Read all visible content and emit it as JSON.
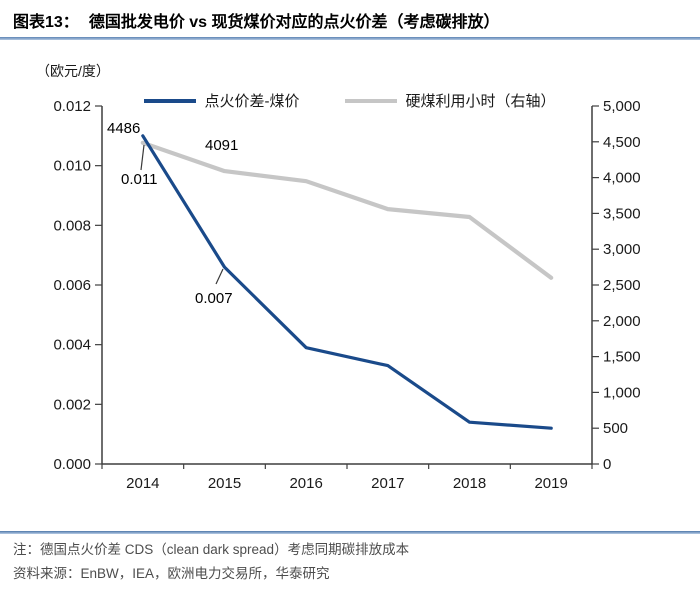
{
  "header": {
    "figure_label": "图表13：",
    "title": "德国批发电价 vs 现货煤价对应的点火价差（考虑碳排放）"
  },
  "footer": {
    "note": "注：德国点火价差 CDS（clean dark spread）考虑同期碳排放成本",
    "source": "资料来源：EnBW，IEA，欧洲电力交易所，华泰研究"
  },
  "colors": {
    "spread_line": "#1a4a8a",
    "hours_line": "#c6c6c6",
    "axis": "#3f3f3f",
    "rule_blue": "#5d85b5",
    "footer_text": "#4d4d4d"
  },
  "chart_data": {
    "type": "line",
    "title": "德国批发电价 vs 现货煤价对应的点火价差（考虑碳排放）",
    "legend_position": "top",
    "grid": false,
    "categories": [
      "2014",
      "2015",
      "2016",
      "2017",
      "2018",
      "2019"
    ],
    "left_axis": {
      "unit": "（欧元/度）",
      "min": 0,
      "max": 0.012,
      "ticks": [
        "0.000",
        "0.002",
        "0.004",
        "0.006",
        "0.008",
        "0.010",
        "0.012"
      ]
    },
    "right_axis": {
      "min": 0,
      "max": 5000,
      "ticks": [
        "0",
        "500",
        "1,000",
        "1,500",
        "2,000",
        "2,500",
        "3,000",
        "3,500",
        "4,000",
        "4,500",
        "5,000"
      ]
    },
    "series": [
      {
        "name": "点火价差-煤价",
        "axis": "left",
        "color": "#1a4a8a",
        "values": [
          0.011,
          0.0066,
          0.0039,
          0.0033,
          0.0014,
          0.0012
        ]
      },
      {
        "name": "硬煤利用小时（右轴）",
        "axis": "right",
        "color": "#c6c6c6",
        "values": [
          4486,
          4091,
          3950,
          3560,
          3450,
          2600
        ]
      }
    ],
    "annotations": [
      {
        "text": "4486",
        "series": "硬煤利用小时（右轴）",
        "category": "2014"
      },
      {
        "text": "4091",
        "series": "硬煤利用小时（右轴）",
        "category": "2015"
      },
      {
        "text": "0.011",
        "series": "点火价差-煤价",
        "category": "2014"
      },
      {
        "text": "0.007",
        "series": "点火价差-煤价",
        "category": "2015"
      }
    ]
  }
}
